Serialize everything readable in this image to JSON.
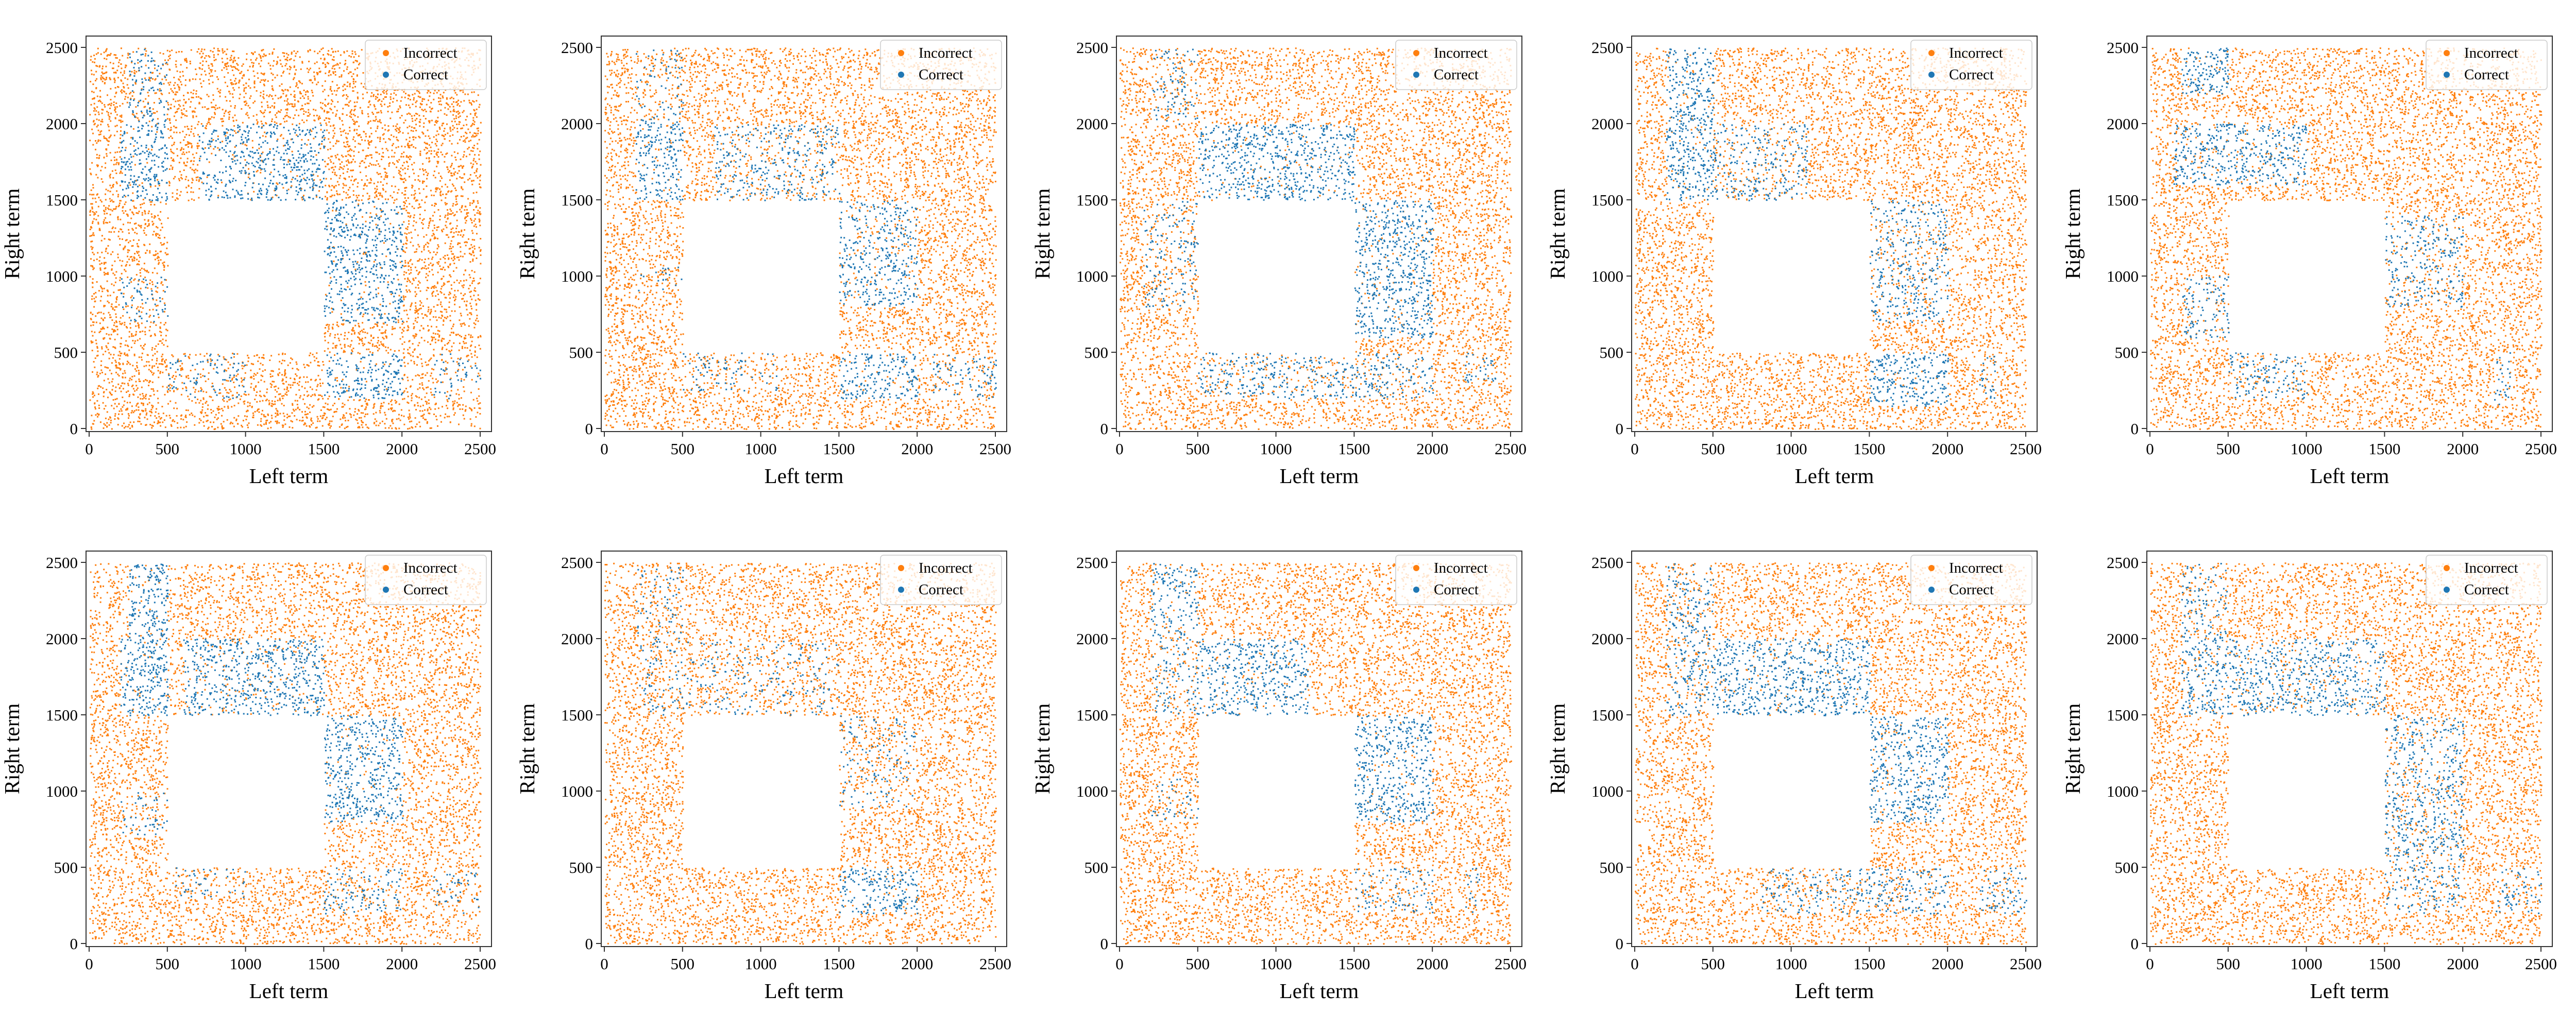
{
  "chart_data": {
    "type": "scatter",
    "layout": "2x5 grid",
    "panel_count": 10,
    "xlabel": "Left term",
    "ylabel": "Right term",
    "xlim": [
      0,
      2500
    ],
    "ylim": [
      0,
      2500
    ],
    "xticks": [
      0,
      500,
      1000,
      1500,
      2000,
      2500
    ],
    "yticks": [
      0,
      500,
      1000,
      1500,
      2000,
      2500
    ],
    "excluded_region": {
      "x": [
        500,
        1500
      ],
      "y": [
        500,
        1500
      ]
    },
    "legend_position": "top-right",
    "series": [
      {
        "name": "Incorrect",
        "color": "#ff7f0e"
      },
      {
        "name": "Correct",
        "color": "#1f77b4"
      }
    ],
    "panels": [
      {
        "correct_regions": [
          {
            "x": [
              250,
              500
            ],
            "y": [
              2000,
              2500
            ],
            "density": 0.55
          },
          {
            "x": [
              200,
              500
            ],
            "y": [
              1500,
              2000
            ],
            "density": 0.9
          },
          {
            "x": [
              200,
              500
            ],
            "y": [
              700,
              1000
            ],
            "density": 0.5
          },
          {
            "x": [
              500,
              1000
            ],
            "y": [
              200,
              500
            ],
            "density": 0.45
          },
          {
            "x": [
              1500,
              2000
            ],
            "y": [
              200,
              500
            ],
            "density": 0.9
          },
          {
            "x": [
              2200,
              2500
            ],
            "y": [
              200,
              500
            ],
            "density": 0.4
          },
          {
            "x": [
              1500,
              2000
            ],
            "y": [
              700,
              1500
            ],
            "density": 0.9,
            "shape": "diag"
          },
          {
            "x": [
              700,
              1500
            ],
            "y": [
              1500,
              2000
            ],
            "density": 0.8,
            "shape": "diag"
          }
        ]
      },
      {
        "correct_regions": [
          {
            "x": [
              200,
              500
            ],
            "y": [
              2000,
              2500
            ],
            "density": 0.3
          },
          {
            "x": [
              200,
              500
            ],
            "y": [
              1500,
              2000
            ],
            "density": 0.85
          },
          {
            "x": [
              200,
              500
            ],
            "y": [
              900,
              1100
            ],
            "density": 0.3
          },
          {
            "x": [
              500,
              1100
            ],
            "y": [
              250,
              500
            ],
            "density": 0.35
          },
          {
            "x": [
              1500,
              2000
            ],
            "y": [
              200,
              500
            ],
            "density": 0.85
          },
          {
            "x": [
              2100,
              2500
            ],
            "y": [
              200,
              500
            ],
            "density": 0.5
          },
          {
            "x": [
              1500,
              2000
            ],
            "y": [
              800,
              1500
            ],
            "density": 0.75,
            "shape": "diag"
          },
          {
            "x": [
              700,
              1500
            ],
            "y": [
              1500,
              2000
            ],
            "density": 0.55,
            "shape": "diag"
          }
        ]
      },
      {
        "correct_regions": [
          {
            "x": [
              200,
              500
            ],
            "y": [
              2000,
              2500
            ],
            "density": 0.4
          },
          {
            "x": [
              150,
              500
            ],
            "y": [
              800,
              1500
            ],
            "density": 0.4
          },
          {
            "x": [
              500,
              1500
            ],
            "y": [
              200,
              500
            ],
            "density": 0.65
          },
          {
            "x": [
              1500,
              2000
            ],
            "y": [
              200,
              500
            ],
            "density": 0.55
          },
          {
            "x": [
              2200,
              2400
            ],
            "y": [
              300,
              500
            ],
            "density": 0.5
          },
          {
            "x": [
              1500,
              2000
            ],
            "y": [
              600,
              1500
            ],
            "density": 0.9,
            "shape": "diag"
          },
          {
            "x": [
              500,
              1500
            ],
            "y": [
              1500,
              2000
            ],
            "density": 0.9,
            "shape": "diag"
          }
        ]
      },
      {
        "correct_regions": [
          {
            "x": [
              200,
              500
            ],
            "y": [
              2000,
              2500
            ],
            "density": 0.85
          },
          {
            "x": [
              200,
              500
            ],
            "y": [
              1500,
              2100
            ],
            "density": 0.9
          },
          {
            "x": [
              500,
              1100
            ],
            "y": [
              1500,
              2000
            ],
            "density": 0.55,
            "shape": "diag"
          },
          {
            "x": [
              1500,
              2000
            ],
            "y": [
              150,
              500
            ],
            "density": 0.9
          },
          {
            "x": [
              2200,
              2300
            ],
            "y": [
              200,
              500
            ],
            "density": 0.5
          },
          {
            "x": [
              1500,
              2000
            ],
            "y": [
              700,
              1500
            ],
            "density": 0.6,
            "shape": "diag"
          }
        ]
      },
      {
        "correct_regions": [
          {
            "x": [
              200,
              500
            ],
            "y": [
              2200,
              2500
            ],
            "density": 0.85
          },
          {
            "x": [
              150,
              1000
            ],
            "y": [
              1600,
              2000
            ],
            "density": 0.8
          },
          {
            "x": [
              200,
              500
            ],
            "y": [
              600,
              1000
            ],
            "density": 0.6
          },
          {
            "x": [
              500,
              1000
            ],
            "y": [
              200,
              500
            ],
            "density": 0.6
          },
          {
            "x": [
              1500,
              2000
            ],
            "y": [
              800,
              1400
            ],
            "density": 0.6
          },
          {
            "x": [
              2200,
              2300
            ],
            "y": [
              150,
              500
            ],
            "density": 0.7
          }
        ]
      },
      {
        "correct_regions": [
          {
            "x": [
              250,
              500
            ],
            "y": [
              2000,
              2500
            ],
            "density": 0.85
          },
          {
            "x": [
              200,
              500
            ],
            "y": [
              1500,
              2000
            ],
            "density": 0.9
          },
          {
            "x": [
              200,
              500
            ],
            "y": [
              700,
              1000
            ],
            "density": 0.45
          },
          {
            "x": [
              500,
              1000
            ],
            "y": [
              300,
              500
            ],
            "density": 0.35
          },
          {
            "x": [
              1500,
              2000
            ],
            "y": [
              200,
              500
            ],
            "density": 0.5
          },
          {
            "x": [
              2200,
              2500
            ],
            "y": [
              200,
              500
            ],
            "density": 0.4
          },
          {
            "x": [
              1500,
              2000
            ],
            "y": [
              800,
              1500
            ],
            "density": 0.9,
            "shape": "diag"
          },
          {
            "x": [
              600,
              1500
            ],
            "y": [
              1500,
              2000
            ],
            "density": 0.8,
            "shape": "diag"
          }
        ]
      },
      {
        "correct_regions": [
          {
            "x": [
              200,
              500
            ],
            "y": [
              1500,
              2500
            ],
            "density": 0.3
          },
          {
            "x": [
              500,
              1500
            ],
            "y": [
              1500,
              2000
            ],
            "density": 0.25,
            "shape": "diag"
          },
          {
            "x": [
              1500,
              2000
            ],
            "y": [
              200,
              500
            ],
            "density": 0.85
          },
          {
            "x": [
              1500,
              2000
            ],
            "y": [
              900,
              1500
            ],
            "density": 0.3
          }
        ]
      },
      {
        "correct_regions": [
          {
            "x": [
              200,
              500
            ],
            "y": [
              2100,
              2500
            ],
            "density": 0.8
          },
          {
            "x": [
              200,
              500
            ],
            "y": [
              1500,
              2100
            ],
            "density": 0.5
          },
          {
            "x": [
              200,
              500
            ],
            "y": [
              800,
              1100
            ],
            "density": 0.3
          },
          {
            "x": [
              500,
              1200
            ],
            "y": [
              1500,
              2000
            ],
            "density": 0.85,
            "shape": "diag"
          },
          {
            "x": [
              1500,
              2000
            ],
            "y": [
              800,
              1500
            ],
            "density": 0.9
          },
          {
            "x": [
              1500,
              2000
            ],
            "y": [
              200,
              500
            ],
            "density": 0.45
          },
          {
            "x": [
              2200,
              2300
            ],
            "y": [
              200,
              500
            ],
            "density": 0.4
          }
        ]
      },
      {
        "correct_regions": [
          {
            "x": [
              200,
              500
            ],
            "y": [
              1500,
              2500
            ],
            "density": 0.55
          },
          {
            "x": [
              500,
              1500
            ],
            "y": [
              1500,
              2000
            ],
            "density": 0.9,
            "shape": "diag"
          },
          {
            "x": [
              1500,
              2000
            ],
            "y": [
              800,
              1500
            ],
            "density": 0.9,
            "shape": "diag"
          },
          {
            "x": [
              800,
              1500
            ],
            "y": [
              200,
              500
            ],
            "density": 0.4
          },
          {
            "x": [
              1500,
              2000
            ],
            "y": [
              200,
              500
            ],
            "density": 0.55
          },
          {
            "x": [
              2200,
              2500
            ],
            "y": [
              200,
              500
            ],
            "density": 0.55
          }
        ]
      },
      {
        "correct_regions": [
          {
            "x": [
              200,
              500
            ],
            "y": [
              2000,
              2500
            ],
            "density": 0.45
          },
          {
            "x": [
              200,
              1500
            ],
            "y": [
              1500,
              2000
            ],
            "density": 0.75,
            "shape": "diag"
          },
          {
            "x": [
              1500,
              2000
            ],
            "y": [
              500,
              1500
            ],
            "density": 0.65,
            "shape": "diag"
          },
          {
            "x": [
              1500,
              2000
            ],
            "y": [
              200,
              500
            ],
            "density": 0.5
          },
          {
            "x": [
              2200,
              2500
            ],
            "y": [
              200,
              500
            ],
            "density": 0.45
          }
        ]
      }
    ]
  }
}
